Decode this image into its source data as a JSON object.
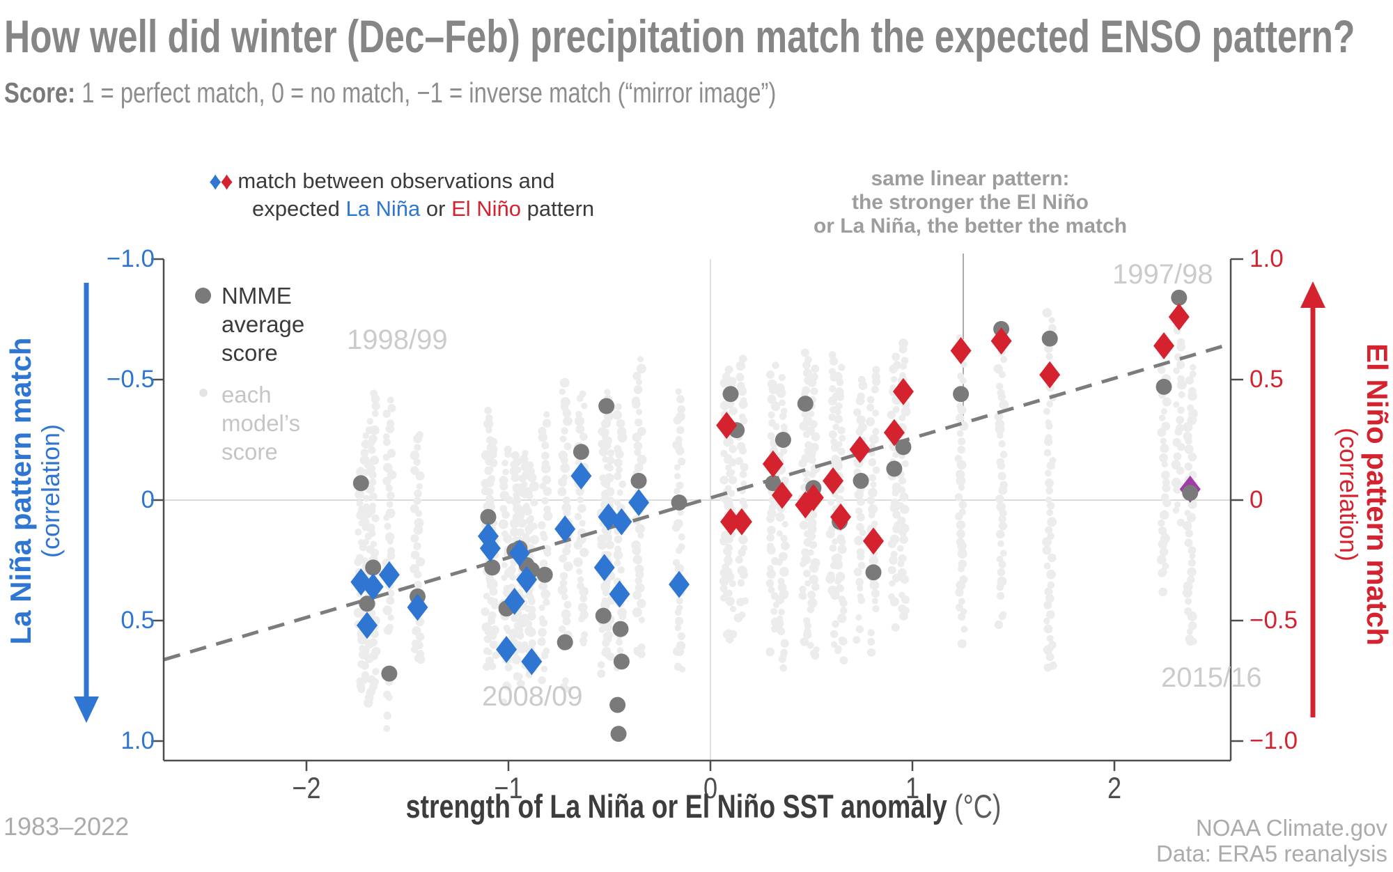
{
  "title": "How well did winter (Dec–Feb) precipitation match the expected ENSO pattern?",
  "subtitle": {
    "bold": "Score:",
    "rest": " 1 = perfect match, 0 = no match, −1 = inverse match (“mirror image”)"
  },
  "legend": {
    "diamond_glyph": "♦",
    "obs_line1": " match between observations and",
    "obs_line2_pre": "expected ",
    "obs_lanina": "La Niña",
    "obs_mid": " or ",
    "obs_elnino": "El Niño",
    "obs_post": " pattern",
    "nmme_lines": [
      "NMME",
      "average",
      "score"
    ],
    "model_lines": [
      "each",
      "model’s",
      "score"
    ]
  },
  "annotation": {
    "lines": [
      "same linear pattern:",
      "the stronger the El Niño",
      "or La Niña, the better the match"
    ]
  },
  "axes": {
    "left_title": "La Niña pattern match",
    "left_title_sub": "(correlation)",
    "right_title": "El Niño pattern match",
    "right_title_sub": "(correlation)",
    "x_title": "strength of La Niña or El Niño SST anomaly",
    "x_title_unit": " (°C)",
    "left_ticks": [
      "−1.0",
      "−0.5",
      "0",
      "0.5",
      "1.0"
    ],
    "right_ticks": [
      "1.0",
      "0.5",
      "0",
      "−0.5",
      "−1.0"
    ],
    "x_ticks": [
      "−2",
      "−1",
      "0",
      "1",
      "2"
    ]
  },
  "year_labels": [
    {
      "text": "1998/99"
    },
    {
      "text": "1997/98"
    },
    {
      "text": "2008/09"
    },
    {
      "text": "2015/16"
    }
  ],
  "footer": {
    "left": "1983–2022",
    "right1": "NOAA Climate.gov",
    "right2": "Data: ERA5 reanalysis"
  },
  "colors": {
    "blue": "#2f76d2",
    "red": "#d4232e",
    "purple": "#a03ca8",
    "nmme_gray": "#7a7a7a",
    "model_gray": "#ececec",
    "axis": "#4d4d4d",
    "gridline": "#cfcfcf",
    "trend": "#7c7c7c",
    "pointer_line": "#ababab"
  },
  "chart_data": {
    "type": "scatter",
    "xlabel": "strength of La Niña or El Niño SST anomaly (°C)",
    "ylabel_left": "La Niña pattern match (correlation), −1 top to 1 bottom",
    "ylabel_right": "El Niño pattern match (correlation), 1 top to −1 bottom",
    "xlim": [
      -2.7,
      2.58
    ],
    "ylim_right_corr": [
      -1.0,
      1.0
    ],
    "x_tick_values": [
      -2,
      -1,
      0,
      1,
      2
    ],
    "y_tick_values_right": [
      1.0,
      0.5,
      0,
      -0.5,
      -1.0
    ],
    "trend": {
      "x1": -2.705,
      "c1": -0.662,
      "x2": 2.575,
      "c2": 0.648
    },
    "blue_diamonds": [
      {
        "x": -1.73,
        "c": -0.34
      },
      {
        "x": -1.7,
        "c": -0.52
      },
      {
        "x": -1.67,
        "c": -0.36
      },
      {
        "x": -1.59,
        "c": -0.31
      },
      {
        "x": -1.45,
        "c": -0.445
      },
      {
        "x": -1.1,
        "c": -0.15
      },
      {
        "x": -1.09,
        "c": -0.2
      },
      {
        "x": -1.01,
        "c": -0.62
      },
      {
        "x": -0.97,
        "c": -0.42
      },
      {
        "x": -0.945,
        "c": -0.22
      },
      {
        "x": -0.91,
        "c": -0.33
      },
      {
        "x": -0.885,
        "c": -0.67
      },
      {
        "x": -0.72,
        "c": -0.12
      },
      {
        "x": -0.64,
        "c": 0.1
      },
      {
        "x": -0.525,
        "c": -0.28
      },
      {
        "x": -0.505,
        "c": -0.07
      },
      {
        "x": -0.45,
        "c": -0.39
      },
      {
        "x": -0.44,
        "c": -0.09
      },
      {
        "x": -0.355,
        "c": -0.01
      },
      {
        "x": -0.155,
        "c": -0.35
      }
    ],
    "red_diamonds": [
      {
        "x": 0.08,
        "c": 0.31
      },
      {
        "x": 0.1,
        "c": -0.09
      },
      {
        "x": 0.155,
        "c": -0.09
      },
      {
        "x": 0.31,
        "c": 0.15
      },
      {
        "x": 0.355,
        "c": 0.02
      },
      {
        "x": 0.47,
        "c": -0.02
      },
      {
        "x": 0.51,
        "c": 0.01
      },
      {
        "x": 0.607,
        "c": 0.08
      },
      {
        "x": 0.645,
        "c": -0.07
      },
      {
        "x": 0.74,
        "c": 0.21
      },
      {
        "x": 0.807,
        "c": -0.17
      },
      {
        "x": 0.91,
        "c": 0.28
      },
      {
        "x": 0.955,
        "c": 0.45
      },
      {
        "x": 1.24,
        "c": 0.62
      },
      {
        "x": 1.44,
        "c": 0.66
      },
      {
        "x": 1.68,
        "c": 0.52
      },
      {
        "x": 2.245,
        "c": 0.64
      },
      {
        "x": 2.32,
        "c": 0.76
      }
    ],
    "purple_diamond": {
      "x": 2.375,
      "c": 0.045
    },
    "gray_dots": [
      {
        "x": -1.73,
        "c": 0.07
      },
      {
        "x": -1.7,
        "c": -0.43
      },
      {
        "x": -1.67,
        "c": -0.28
      },
      {
        "x": -1.59,
        "c": -0.72
      },
      {
        "x": -1.45,
        "c": -0.4
      },
      {
        "x": -1.1,
        "c": -0.07
      },
      {
        "x": -1.08,
        "c": -0.28
      },
      {
        "x": -1.01,
        "c": -0.45
      },
      {
        "x": -0.97,
        "c": -0.21
      },
      {
        "x": -0.945,
        "c": -0.2
      },
      {
        "x": -0.91,
        "c": -0.27
      },
      {
        "x": -0.885,
        "c": -0.29
      },
      {
        "x": -0.82,
        "c": -0.31
      },
      {
        "x": -0.72,
        "c": -0.59
      },
      {
        "x": -0.64,
        "c": 0.2
      },
      {
        "x": -0.53,
        "c": -0.48
      },
      {
        "x": -0.515,
        "c": 0.39
      },
      {
        "x": -0.46,
        "c": -0.85
      },
      {
        "x": -0.455,
        "c": -0.97
      },
      {
        "x": -0.445,
        "c": -0.535
      },
      {
        "x": -0.44,
        "c": -0.67
      },
      {
        "x": -0.355,
        "c": 0.08
      },
      {
        "x": -0.155,
        "c": -0.01
      },
      {
        "x": 0.1,
        "c": 0.44
      },
      {
        "x": 0.13,
        "c": 0.29
      },
      {
        "x": 0.31,
        "c": 0.07
      },
      {
        "x": 0.36,
        "c": 0.25
      },
      {
        "x": 0.47,
        "c": 0.4
      },
      {
        "x": 0.51,
        "c": 0.05
      },
      {
        "x": 0.64,
        "c": -0.09
      },
      {
        "x": 0.745,
        "c": 0.08
      },
      {
        "x": 0.807,
        "c": -0.3
      },
      {
        "x": 0.91,
        "c": 0.13
      },
      {
        "x": 0.955,
        "c": 0.22
      },
      {
        "x": 1.24,
        "c": 0.44
      },
      {
        "x": 1.44,
        "c": 0.71
      },
      {
        "x": 1.68,
        "c": 0.67
      },
      {
        "x": 2.245,
        "c": 0.47
      },
      {
        "x": 2.32,
        "c": 0.84
      },
      {
        "x": 2.375,
        "c": 0.03
      }
    ],
    "model_strips": [
      {
        "x": -1.73,
        "top": 0.12,
        "bot": -0.62,
        "tail": -0.8
      },
      {
        "x": -1.7,
        "top": 0.3,
        "bot": -0.72,
        "tail": -0.88
      },
      {
        "x": -1.67,
        "top": 0.45,
        "bot": -0.65,
        "tail": -0.8
      },
      {
        "x": -1.59,
        "top": 0.42,
        "bot": -0.55,
        "tail": -0.95
      },
      {
        "x": -1.45,
        "top": 0.28,
        "bot": -0.6,
        "tail": -0.75
      },
      {
        "x": -1.1,
        "top": 0.38,
        "bot": -0.55,
        "tail": -0.7
      },
      {
        "x": -1.08,
        "top": 0.25,
        "bot": -0.6,
        "tail": -0.8
      },
      {
        "x": -1.01,
        "top": 0.22,
        "bot": -0.65,
        "tail": -0.85
      },
      {
        "x": -0.97,
        "top": 0.18,
        "bot": -0.55,
        "tail": -0.75
      },
      {
        "x": -0.945,
        "top": 0.15,
        "bot": -0.6,
        "tail": -0.8
      },
      {
        "x": -0.91,
        "top": 0.2,
        "bot": -0.55,
        "tail": -0.7
      },
      {
        "x": -0.885,
        "top": 0.15,
        "bot": -0.65,
        "tail": -0.8
      },
      {
        "x": -0.82,
        "top": 0.35,
        "bot": -0.55,
        "tail": -0.75
      },
      {
        "x": -0.72,
        "top": 0.48,
        "bot": -0.6,
        "tail": -0.8
      },
      {
        "x": -0.64,
        "top": 0.45,
        "bot": -0.45,
        "tail": -0.6
      },
      {
        "x": -0.525,
        "top": 0.32,
        "bot": -0.6,
        "tail": -0.8
      },
      {
        "x": -0.505,
        "top": 0.45,
        "bot": -0.55,
        "tail": -0.7
      },
      {
        "x": -0.45,
        "top": 0.38,
        "bot": -0.65,
        "tail": -0.85
      },
      {
        "x": -0.355,
        "top": 0.58,
        "bot": -0.5,
        "tail": -0.7
      },
      {
        "x": -0.155,
        "top": 0.45,
        "bot": -0.6,
        "tail": -0.75
      },
      {
        "x": 0.08,
        "top": 0.55,
        "bot": -0.4,
        "tail": -0.6
      },
      {
        "x": 0.1,
        "top": 0.5,
        "bot": -0.45,
        "tail": -0.6
      },
      {
        "x": 0.155,
        "top": 0.58,
        "bot": -0.35,
        "tail": -0.55
      },
      {
        "x": 0.31,
        "top": 0.55,
        "bot": -0.5,
        "tail": -0.7
      },
      {
        "x": 0.355,
        "top": 0.5,
        "bot": -0.55,
        "tail": -0.7
      },
      {
        "x": 0.47,
        "top": 0.62,
        "bot": -0.4,
        "tail": -0.6
      },
      {
        "x": 0.51,
        "top": 0.55,
        "bot": -0.45,
        "tail": -0.65
      },
      {
        "x": 0.607,
        "top": 0.6,
        "bot": -0.4,
        "tail": -0.6
      },
      {
        "x": 0.645,
        "top": 0.55,
        "bot": -0.5,
        "tail": -0.7
      },
      {
        "x": 0.74,
        "top": 0.5,
        "bot": -0.4,
        "tail": -0.6
      },
      {
        "x": 0.807,
        "top": 0.55,
        "bot": -0.45,
        "tail": -0.65
      },
      {
        "x": 0.91,
        "top": 0.6,
        "bot": -0.35,
        "tail": -0.55
      },
      {
        "x": 0.955,
        "top": 0.65,
        "bot": -0.3,
        "tail": -0.5
      },
      {
        "x": 1.24,
        "top": 0.68,
        "bot": -0.45,
        "tail": -0.6
      },
      {
        "x": 1.44,
        "top": 0.64,
        "bot": -0.4,
        "tail": -0.55
      },
      {
        "x": 1.68,
        "top": 0.78,
        "bot": -0.6,
        "tail": -0.7
      },
      {
        "x": 2.245,
        "top": 0.53,
        "bot": -0.28,
        "tail": -0.4
      },
      {
        "x": 2.32,
        "top": 0.76,
        "bot": 0.05,
        "tail": -0.1
      },
      {
        "x": 2.375,
        "top": 0.55,
        "bot": -0.52,
        "tail": -0.6
      }
    ]
  }
}
